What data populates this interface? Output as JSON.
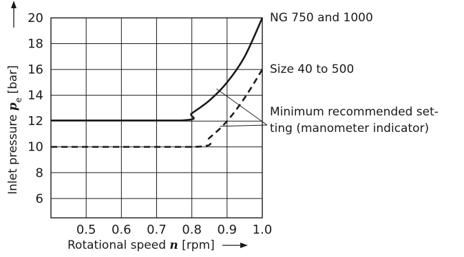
{
  "chart_data": {
    "type": "line",
    "xlabel": {
      "prefix": "Rotational speed ",
      "var": "n",
      "unit": " [rpm]"
    },
    "ylabel": {
      "prefix": "Inlet pressure ",
      "var": "p",
      "sub": "e",
      "unit": " [bar]"
    },
    "xlim": [
      0.4,
      1.0
    ],
    "ylim": [
      4.5,
      20
    ],
    "grid": true,
    "x_ticks": [
      {
        "v": 0.5,
        "t": "0.5"
      },
      {
        "v": 0.6,
        "t": "0.6"
      },
      {
        "v": 0.7,
        "t": "0.7"
      },
      {
        "v": 0.8,
        "t": "0.8"
      },
      {
        "v": 0.9,
        "t": "0.9"
      },
      {
        "v": 1.0,
        "t": "1.0"
      }
    ],
    "y_ticks": [
      {
        "v": 6,
        "t": "6"
      },
      {
        "v": 8,
        "t": "8"
      },
      {
        "v": 10,
        "t": "10"
      },
      {
        "v": 12,
        "t": "12"
      },
      {
        "v": 14,
        "t": "14"
      },
      {
        "v": 16,
        "t": "16"
      },
      {
        "v": 18,
        "t": "18"
      },
      {
        "v": 20,
        "t": "20"
      }
    ],
    "series": [
      {
        "name": "NG 750 and 1000",
        "style": "solid",
        "x": [
          0.4,
          0.77,
          0.8,
          0.85,
          0.9,
          0.95,
          1.0
        ],
        "y": [
          12.05,
          12.05,
          12.6,
          13.6,
          15.0,
          17.0,
          20.0
        ]
      },
      {
        "name": "Size 40 to 500",
        "style": "dashed",
        "x": [
          0.4,
          0.81,
          0.85,
          0.9,
          0.95,
          1.0
        ],
        "y": [
          10.0,
          10.0,
          10.7,
          12.0,
          13.8,
          16.0
        ]
      }
    ],
    "annotation": {
      "lines": [
        "Minimum recommended set-",
        "ting (manometer indicator)"
      ],
      "targets": [
        {
          "x": 0.87,
          "y": 14.5
        },
        {
          "x": 0.88,
          "y": 11.6
        }
      ]
    },
    "colors": {
      "line": "#1a1a1a",
      "grid": "#1a1a1a",
      "text": "#1a1a1a"
    }
  }
}
